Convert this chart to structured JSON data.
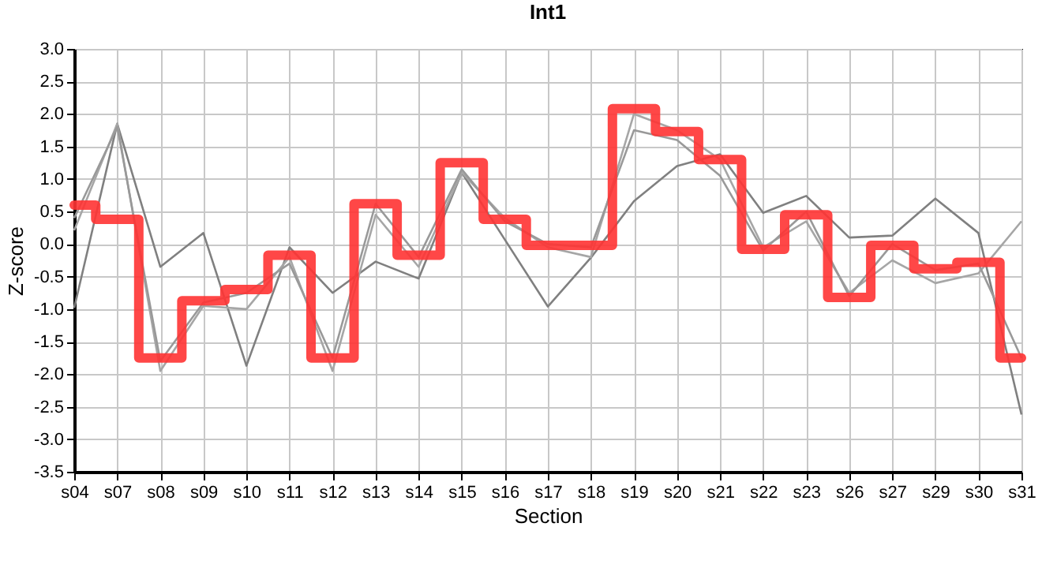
{
  "chart_data": {
    "type": "line",
    "title": "Int1",
    "xlabel": "Section",
    "ylabel": "Z-score",
    "categories": [
      "s04",
      "s07",
      "s08",
      "s09",
      "s10",
      "s11",
      "s12",
      "s13",
      "s14",
      "s15",
      "s16",
      "s17",
      "s18",
      "s19",
      "s20",
      "s21",
      "s22",
      "s23",
      "s26",
      "s27",
      "s29",
      "s30",
      "s31"
    ],
    "series": [
      {
        "type": "line",
        "color": "#808080",
        "values": [
          -0.98,
          1.85,
          -0.35,
          0.17,
          -1.87,
          -0.05,
          -0.75,
          -0.27,
          -0.53,
          1.1,
          0.07,
          -0.96,
          -0.21,
          0.66,
          1.2,
          1.38,
          0.48,
          0.74,
          0.1,
          0.13,
          0.7,
          0.17,
          -2.62
        ]
      },
      {
        "type": "line",
        "color": "#a6a6a6",
        "values": [
          0.21,
          1.85,
          -1.95,
          -0.95,
          -1.0,
          -0.2,
          -1.95,
          0.45,
          -0.35,
          1.1,
          0.4,
          -0.05,
          -0.2,
          2.0,
          1.75,
          1.3,
          -0.05,
          0.35,
          -0.75,
          -0.25,
          -0.6,
          -0.45,
          0.35
        ]
      },
      {
        "type": "line",
        "color": "#999999",
        "values": [
          0.4,
          1.8,
          -1.8,
          -0.9,
          -0.75,
          -0.3,
          -1.75,
          0.62,
          -0.2,
          1.15,
          0.35,
          0.0,
          -0.05,
          1.75,
          1.6,
          1.05,
          -0.1,
          0.5,
          -0.8,
          0.0,
          -0.4,
          -0.3,
          -1.75
        ]
      },
      {
        "type": "step",
        "color": "#ff3333",
        "values": [
          0.6,
          0.38,
          -1.75,
          -0.87,
          -0.7,
          -0.17,
          -1.75,
          0.62,
          -0.17,
          1.25,
          0.38,
          -0.02,
          -0.02,
          2.08,
          1.73,
          1.3,
          -0.08,
          0.45,
          -0.82,
          -0.02,
          -0.38,
          -0.28,
          -1.75
        ]
      }
    ],
    "ylim": [
      -3.5,
      3.0
    ],
    "yticks": [
      {
        "value": -3.5,
        "label": "-3.5"
      },
      {
        "value": -3,
        "label": "-3.0"
      },
      {
        "value": -2.5,
        "label": "-2.5"
      },
      {
        "value": -2,
        "label": "-2.0"
      },
      {
        "value": -1.5,
        "label": "-1.5"
      },
      {
        "value": -1,
        "label": "-1.0"
      },
      {
        "value": -0.5,
        "label": "-0.5"
      },
      {
        "value": 0,
        "label": "0.0"
      },
      {
        "value": 0.5,
        "label": "0.5"
      },
      {
        "value": 1,
        "label": "1.0"
      },
      {
        "value": 1.5,
        "label": "1.5"
      },
      {
        "value": 2,
        "label": "2.0"
      },
      {
        "value": 2.5,
        "label": "2.5"
      },
      {
        "value": 3,
        "label": "3.0"
      }
    ],
    "grid": true
  }
}
